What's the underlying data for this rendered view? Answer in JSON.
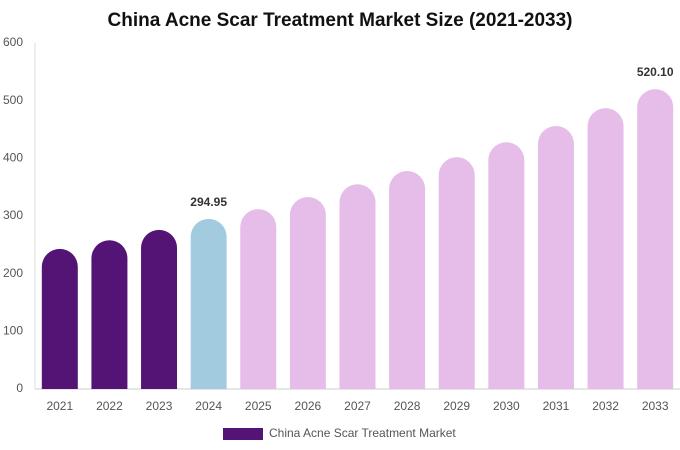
{
  "chart_data": {
    "type": "bar",
    "title": "China Acne Scar Treatment Market Size (2021-2033)",
    "categories": [
      "2021",
      "2022",
      "2023",
      "2024",
      "2025",
      "2026",
      "2027",
      "2028",
      "2029",
      "2030",
      "2031",
      "2032",
      "2033"
    ],
    "series": [
      {
        "name": "China Acne Scar Treatment Market",
        "color": "#541475",
        "colors": [
          "#541475",
          "#541475",
          "#541475",
          "#a3cbe0",
          "#e6bde9",
          "#e6bde9",
          "#e6bde9",
          "#e6bde9",
          "#e6bde9",
          "#e6bde9",
          "#e6bde9",
          "#e6bde9",
          "#e6bde9"
        ],
        "values": [
          243,
          258,
          276,
          294.95,
          312,
          333,
          355,
          378,
          402,
          428,
          456,
          487,
          520.1
        ],
        "value_labels": [
          null,
          null,
          null,
          "294.95",
          null,
          null,
          null,
          null,
          null,
          null,
          null,
          null,
          "520.10"
        ]
      }
    ],
    "ylim": [
      0,
      600
    ],
    "yticks": [
      0,
      100,
      200,
      300,
      400,
      500,
      600
    ],
    "legend": "bottom"
  }
}
